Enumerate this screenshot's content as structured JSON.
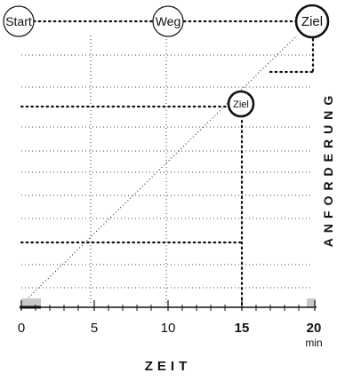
{
  "nodes": {
    "start": "Start",
    "weg": "Weg",
    "ziel_top": "Ziel",
    "ziel_mid": "Ziel"
  },
  "x_axis": {
    "ticks": [
      "0",
      "5",
      "10",
      "15",
      "20"
    ],
    "unit": "min",
    "label": "ZEIT"
  },
  "y_axis": {
    "label": "ANFORDERUNG"
  },
  "colors": {
    "line": "#111111",
    "highlight": "#c8c8c8"
  }
}
